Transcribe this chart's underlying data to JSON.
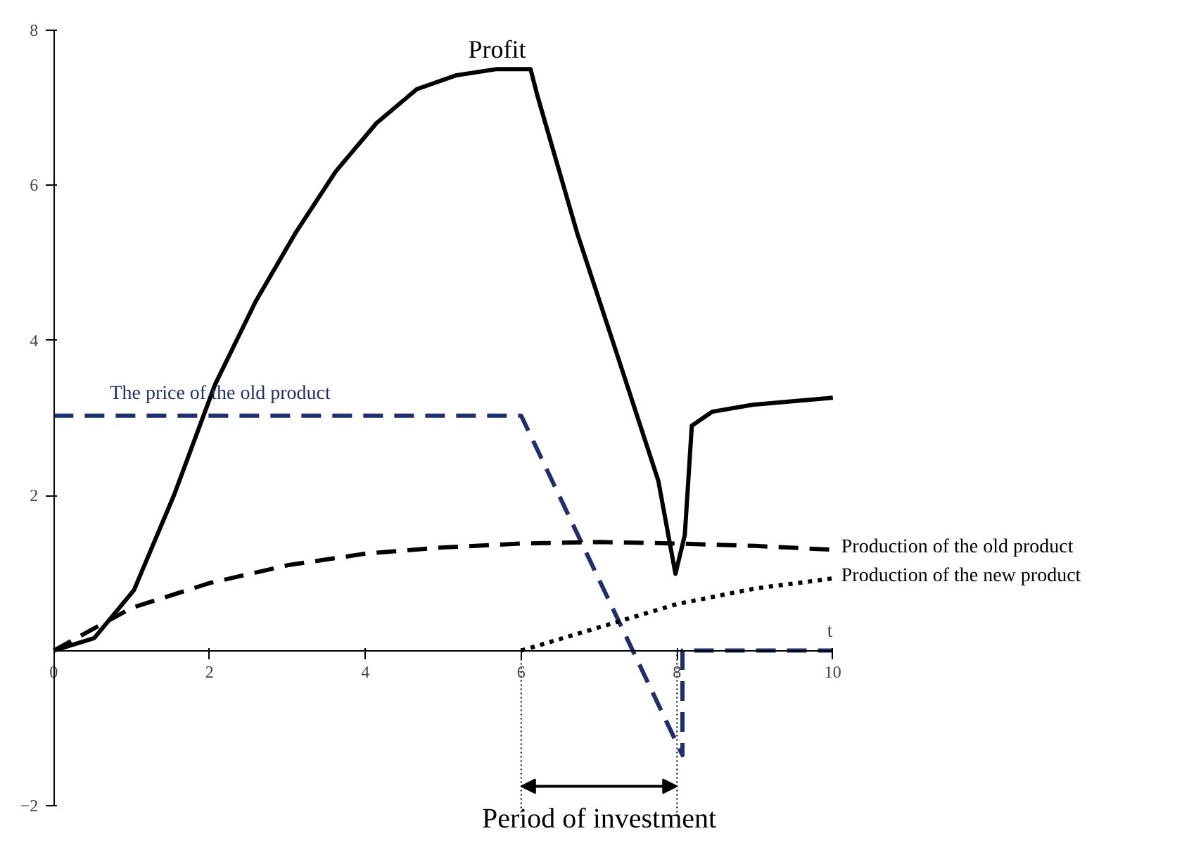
{
  "chart_data": {
    "type": "line",
    "xlabel": "t",
    "xlim": [
      0,
      10
    ],
    "ylim": [
      -2,
      8
    ],
    "xticks": [
      0,
      2,
      4,
      6,
      8,
      10
    ],
    "yticks": [
      -2,
      2,
      4,
      6,
      8
    ],
    "grid": false,
    "marker": "none",
    "series": [
      {
        "name": "Profit",
        "color": "#000000",
        "line_style": "solid",
        "x": [
          0,
          0.52,
          1.03,
          1.55,
          2.07,
          2.59,
          3.1,
          3.62,
          4.14,
          4.66,
          5.17,
          5.69,
          6.12,
          6.21,
          6.72,
          7.24,
          7.76,
          7.98,
          8.1,
          8.19,
          8.45,
          8.97,
          10
        ],
        "values": [
          0,
          0.16,
          0.78,
          2.02,
          3.43,
          4.5,
          5.38,
          6.18,
          6.8,
          7.24,
          7.42,
          7.5,
          7.5,
          7.15,
          5.38,
          3.79,
          2.19,
          0.99,
          1.49,
          2.9,
          3.08,
          3.17,
          3.26
        ]
      },
      {
        "name": "The price of the old product",
        "color": "#1f2f6b",
        "line_style": "dashed",
        "x": [
          0,
          6,
          8.07,
          8.07,
          10
        ],
        "values": [
          3.03,
          3.03,
          -1.35,
          0,
          0
        ]
      },
      {
        "name": "Production of the old product",
        "color": "#000000",
        "line_style": "dashed",
        "x": [
          0,
          1,
          2,
          3,
          4,
          5,
          6,
          7,
          8,
          9,
          10
        ],
        "values": [
          0,
          0.55,
          0.87,
          1.1,
          1.25,
          1.33,
          1.38,
          1.4,
          1.38,
          1.35,
          1.3
        ]
      },
      {
        "name": "Production of the new product",
        "color": "#000000",
        "line_style": "dotted",
        "x": [
          6,
          7,
          8,
          9,
          10
        ],
        "values": [
          0,
          0.3,
          0.6,
          0.8,
          0.93
        ]
      }
    ],
    "ref_lines": [
      {
        "axis": "x",
        "value": 6,
        "color": "#000000",
        "line_style": "dotted"
      },
      {
        "axis": "x",
        "value": 8,
        "color": "#000000",
        "line_style": "dotted"
      }
    ],
    "annotations": [
      "Period of investment"
    ]
  }
}
